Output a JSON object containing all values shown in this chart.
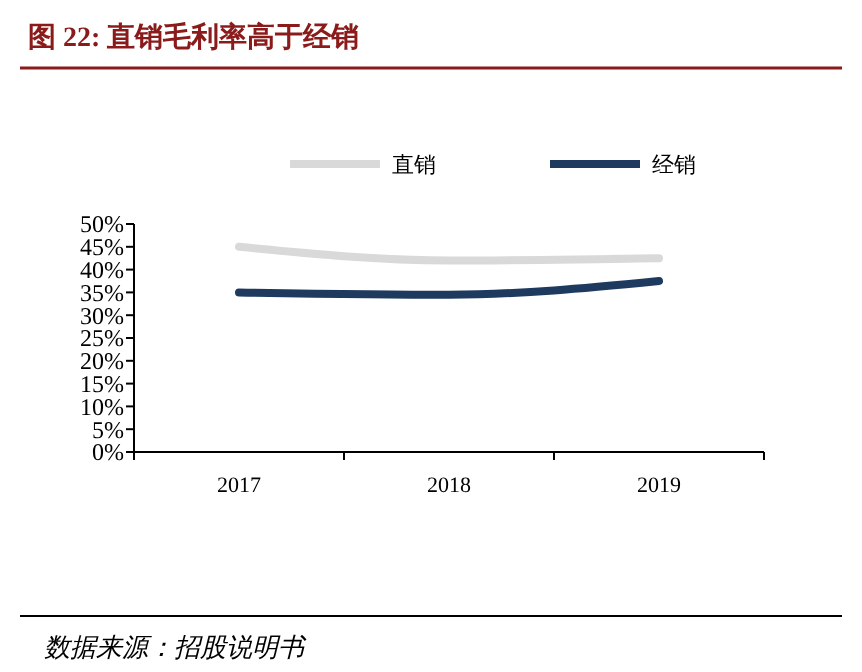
{
  "chart_data": {
    "type": "line",
    "title": "图 22: 直销毛利率高于经销",
    "annotations": [
      "数据来源：招股说明书"
    ],
    "categories": [
      "2017",
      "2018",
      "2019"
    ],
    "series": [
      {
        "name": "直销",
        "color": "#d9d9d9",
        "values": [
          45,
          42,
          42.5
        ]
      },
      {
        "name": "经销",
        "color": "#1f3a5f",
        "values": [
          35,
          34.5,
          37.5
        ]
      }
    ],
    "ylim": [
      0,
      50
    ],
    "yticks": [
      {
        "value": 0,
        "label": "0%"
      },
      {
        "value": 5,
        "label": "5%"
      },
      {
        "value": 10,
        "label": "10%"
      },
      {
        "value": 15,
        "label": "15%"
      },
      {
        "value": 20,
        "label": "20%"
      },
      {
        "value": 25,
        "label": "25%"
      },
      {
        "value": 30,
        "label": "30%"
      },
      {
        "value": 35,
        "label": "35%"
      },
      {
        "value": 40,
        "label": "40%"
      },
      {
        "value": 45,
        "label": "45%"
      },
      {
        "value": 50,
        "label": "50%"
      }
    ],
    "grid": false,
    "legend": "top",
    "marker": "none",
    "line_style": "solid"
  }
}
